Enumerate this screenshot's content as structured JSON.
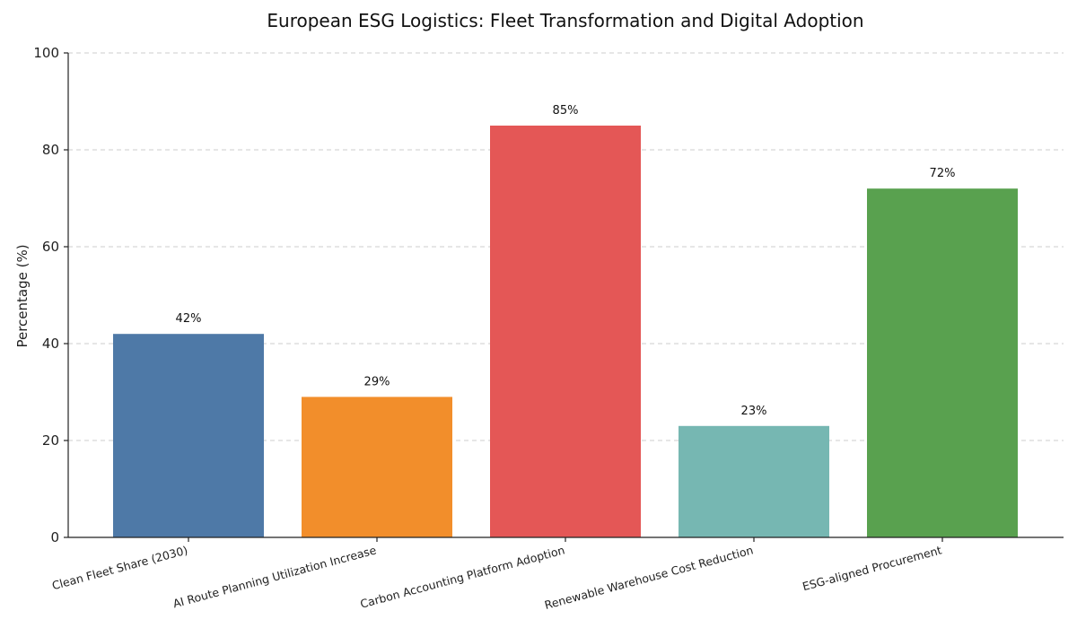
{
  "chart_data": {
    "type": "bar",
    "title": "European ESG Logistics: Fleet Transformation and Digital Adoption",
    "xlabel": "",
    "ylabel": "Percentage (%)",
    "ylim": [
      0,
      100
    ],
    "yticks": [
      0,
      20,
      40,
      60,
      80,
      100
    ],
    "grid": true,
    "categories": [
      "Clean Fleet Share (2030)",
      "AI Route Planning Utilization Increase",
      "Carbon Accounting Platform Adoption",
      "Renewable Warehouse Cost Reduction",
      "ESG-aligned Procurement"
    ],
    "values": [
      42,
      29,
      85,
      23,
      72
    ],
    "data_labels": [
      "42%",
      "29%",
      "85%",
      "23%",
      "72%"
    ],
    "colors": [
      "#4e79a7",
      "#f28e2b",
      "#e45756",
      "#76b7b2",
      "#59a14f"
    ]
  }
}
